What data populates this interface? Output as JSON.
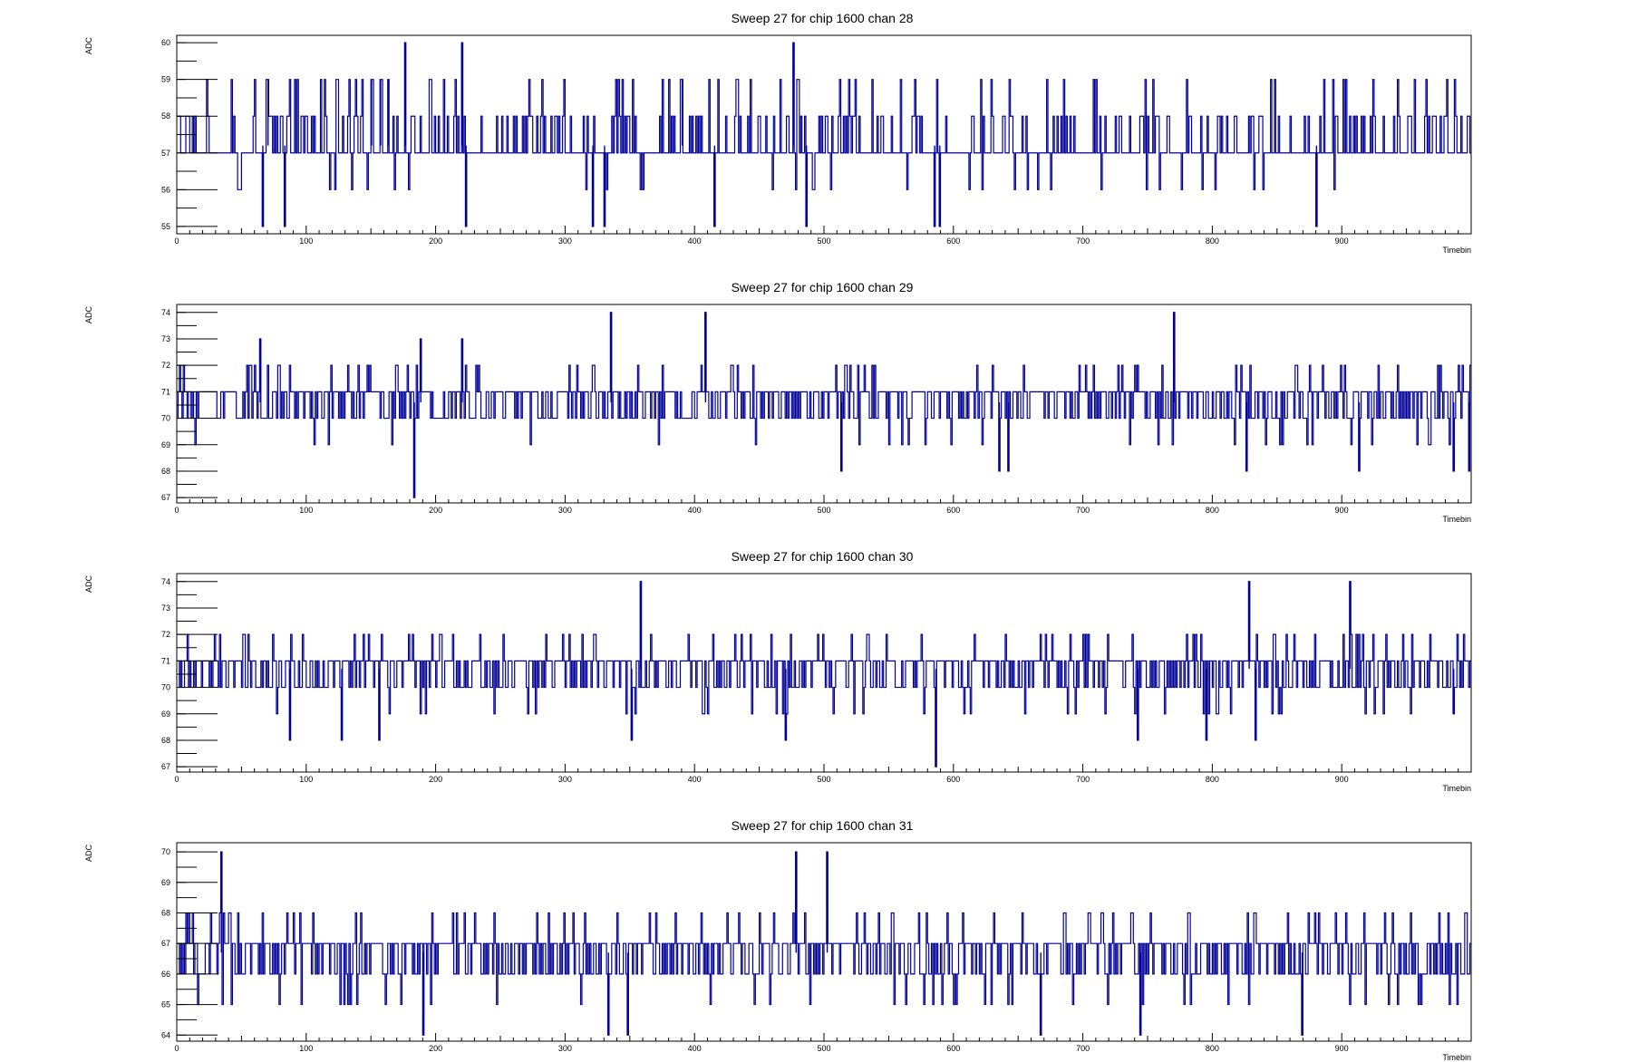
{
  "chart_data": [
    {
      "type": "line",
      "title": "Sweep 27 for chip 1600 chan 28",
      "xlabel": "Timebin",
      "ylabel": "ADC",
      "xlim": [
        0,
        1000
      ],
      "ylim": [
        54.8,
        60.2
      ],
      "yticks": [
        55,
        56,
        57,
        58,
        59,
        60
      ],
      "xticks": [
        0,
        100,
        200,
        300,
        400,
        500,
        600,
        700,
        800,
        900
      ],
      "grid": false,
      "baseline": 57.2,
      "spikes": [
        {
          "x": 66,
          "y": 55
        },
        {
          "x": 70,
          "y": 59
        },
        {
          "x": 83,
          "y": 55
        },
        {
          "x": 150,
          "y": 59
        },
        {
          "x": 157,
          "y": 59
        },
        {
          "x": 163,
          "y": 59
        },
        {
          "x": 176,
          "y": 60
        },
        {
          "x": 220,
          "y": 60
        },
        {
          "x": 223,
          "y": 55
        },
        {
          "x": 321,
          "y": 55
        },
        {
          "x": 330,
          "y": 55
        },
        {
          "x": 390,
          "y": 59
        },
        {
          "x": 415,
          "y": 55
        },
        {
          "x": 476,
          "y": 60
        },
        {
          "x": 486,
          "y": 55
        },
        {
          "x": 585,
          "y": 55
        },
        {
          "x": 589,
          "y": 55
        },
        {
          "x": 880,
          "y": 55
        }
      ]
    },
    {
      "type": "line",
      "title": "Sweep 27 for chip 1600 chan 29",
      "xlabel": "Timebin",
      "ylabel": "ADC",
      "xlim": [
        0,
        1000
      ],
      "ylim": [
        66.8,
        74.3
      ],
      "yticks": [
        67,
        68,
        69,
        70,
        71,
        72,
        73,
        74
      ],
      "xticks": [
        0,
        100,
        200,
        300,
        400,
        500,
        600,
        700,
        800,
        900
      ],
      "grid": false,
      "baseline": 70.6,
      "spikes": [
        {
          "x": 64,
          "y": 73
        },
        {
          "x": 183,
          "y": 67
        },
        {
          "x": 188,
          "y": 73
        },
        {
          "x": 220,
          "y": 73
        },
        {
          "x": 335,
          "y": 74
        },
        {
          "x": 408,
          "y": 74
        },
        {
          "x": 513,
          "y": 68
        },
        {
          "x": 635,
          "y": 68
        },
        {
          "x": 642,
          "y": 68
        },
        {
          "x": 770,
          "y": 74
        },
        {
          "x": 826,
          "y": 68
        },
        {
          "x": 913,
          "y": 68
        },
        {
          "x": 986,
          "y": 68
        },
        {
          "x": 998,
          "y": 68
        }
      ]
    },
    {
      "type": "line",
      "title": "Sweep 27 for chip 1600 chan 30",
      "xlabel": "Timebin",
      "ylabel": "ADC",
      "xlim": [
        0,
        1000
      ],
      "ylim": [
        66.8,
        74.3
      ],
      "yticks": [
        67,
        68,
        69,
        70,
        71,
        72,
        73,
        74
      ],
      "xticks": [
        0,
        100,
        200,
        300,
        400,
        500,
        600,
        700,
        800,
        900
      ],
      "grid": false,
      "baseline": 70.7,
      "spikes": [
        {
          "x": 87,
          "y": 68
        },
        {
          "x": 127,
          "y": 68
        },
        {
          "x": 156,
          "y": 68
        },
        {
          "x": 351,
          "y": 68
        },
        {
          "x": 358,
          "y": 74
        },
        {
          "x": 470,
          "y": 68
        },
        {
          "x": 586,
          "y": 67
        },
        {
          "x": 742,
          "y": 68
        },
        {
          "x": 795,
          "y": 68
        },
        {
          "x": 828,
          "y": 74
        },
        {
          "x": 833,
          "y": 68
        },
        {
          "x": 906,
          "y": 74
        },
        {
          "x": 986,
          "y": 69
        }
      ]
    },
    {
      "type": "line",
      "title": "Sweep 27 for chip 1600 chan 31",
      "xlabel": "Timebin",
      "ylabel": "ADC",
      "xlim": [
        0,
        1000
      ],
      "ylim": [
        63.8,
        70.3
      ],
      "yticks": [
        64,
        65,
        66,
        67,
        68,
        69,
        70
      ],
      "xticks": [
        0,
        100,
        200,
        300,
        400,
        500,
        600,
        700,
        800,
        900
      ],
      "grid": false,
      "baseline": 66.7,
      "spikes": [
        {
          "x": 34,
          "y": 70
        },
        {
          "x": 190,
          "y": 64
        },
        {
          "x": 333,
          "y": 64
        },
        {
          "x": 348,
          "y": 64
        },
        {
          "x": 478,
          "y": 70
        },
        {
          "x": 502,
          "y": 70
        },
        {
          "x": 667,
          "y": 64
        },
        {
          "x": 744,
          "y": 64
        },
        {
          "x": 869,
          "y": 64
        }
      ]
    }
  ]
}
